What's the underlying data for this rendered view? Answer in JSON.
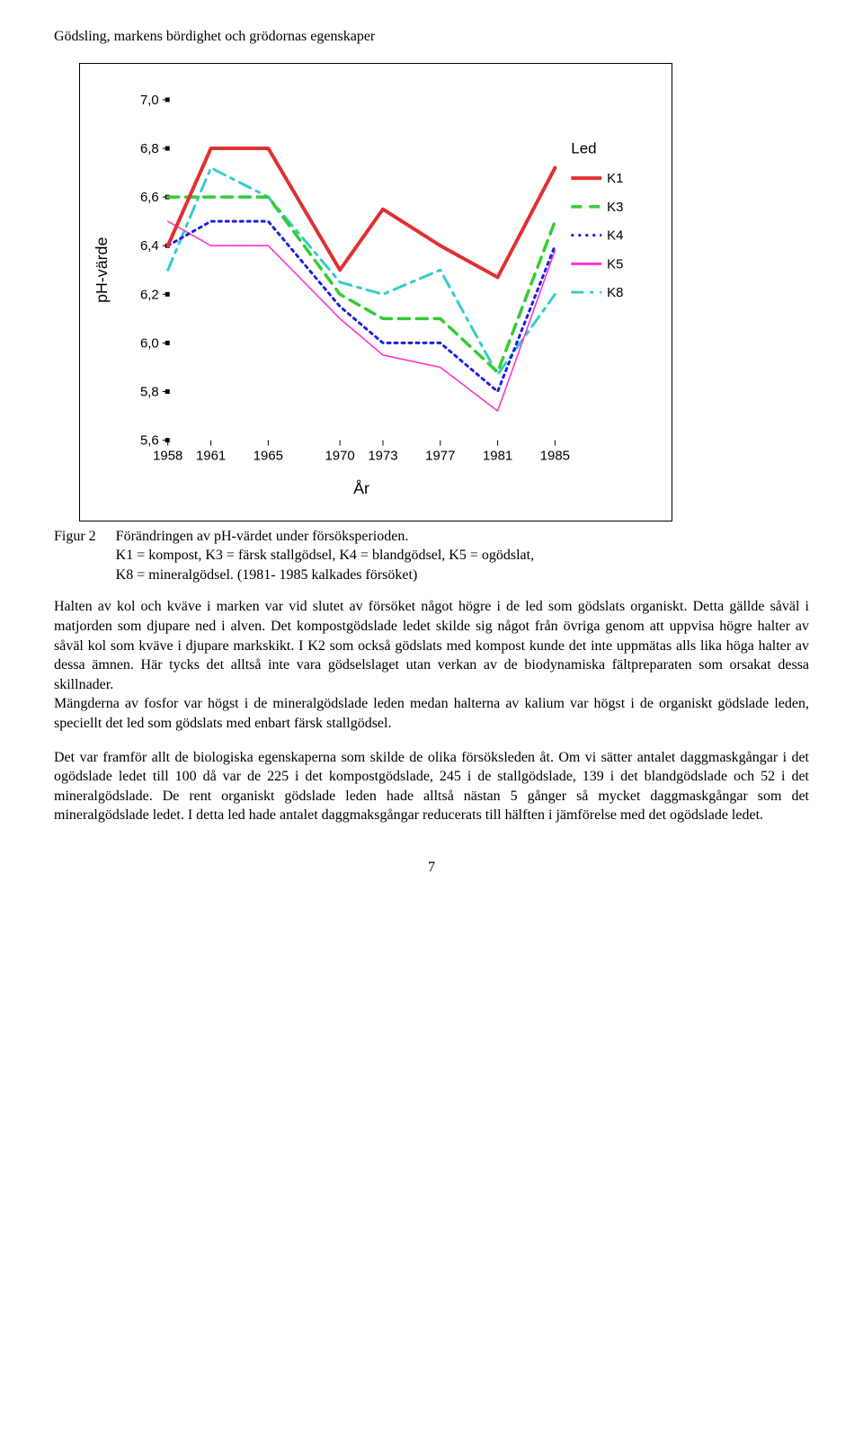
{
  "header": "Gödsling, markens bördighet och grödornas egenskaper",
  "chart": {
    "type": "line",
    "xlabel": "År",
    "ylabel": "pH-värde",
    "legend_title": "Led",
    "x_lim": [
      1958,
      1985
    ],
    "y_lim": [
      5.6,
      7.0
    ],
    "x_ticks": [
      1958,
      1961,
      1965,
      1970,
      1973,
      1977,
      1981,
      1985
    ],
    "y_ticks": [
      5.6,
      5.8,
      6.0,
      6.2,
      6.4,
      6.6,
      6.8,
      7.0
    ],
    "x_tick_labels": [
      "1958",
      "1961",
      "1965",
      "1970",
      "1973",
      "1977",
      "1981",
      "1985"
    ],
    "y_tick_labels": [
      "5,6",
      "5,8",
      "6,0",
      "6,2",
      "6,4",
      "6,6",
      "6,8",
      "7,0"
    ],
    "axis_font_size": 15,
    "label_font_size": 17,
    "background_color": "#ffffff",
    "axis_color": "#000000",
    "tick_length": 6,
    "series": [
      {
        "key": "K8",
        "label": "K8",
        "color": "#33cccc",
        "width": 3.0,
        "style": "dash-dot",
        "values": [
          [
            1958,
            6.3
          ],
          [
            1961,
            6.72
          ],
          [
            1965,
            6.6
          ],
          [
            1970,
            6.25
          ],
          [
            1973,
            6.2
          ],
          [
            1977,
            6.3
          ],
          [
            1981,
            5.87
          ],
          [
            1985,
            6.2
          ]
        ]
      },
      {
        "key": "K5",
        "label": "K5",
        "color": "#ff33cc",
        "width": 1.6,
        "style": "solid",
        "values": [
          [
            1958,
            6.5
          ],
          [
            1961,
            6.4
          ],
          [
            1965,
            6.4
          ],
          [
            1970,
            6.1
          ],
          [
            1973,
            5.95
          ],
          [
            1977,
            5.9
          ],
          [
            1981,
            5.72
          ],
          [
            1985,
            6.38
          ]
        ]
      },
      {
        "key": "K4",
        "label": "K4",
        "color": "#1f1fe0",
        "width": 3.0,
        "style": "dotted",
        "values": [
          [
            1958,
            6.4
          ],
          [
            1961,
            6.5
          ],
          [
            1965,
            6.5
          ],
          [
            1970,
            6.15
          ],
          [
            1973,
            6.0
          ],
          [
            1977,
            6.0
          ],
          [
            1981,
            5.8
          ],
          [
            1985,
            6.4
          ]
        ]
      },
      {
        "key": "K3",
        "label": "K3",
        "color": "#33cc33",
        "width": 3.5,
        "style": "dashed",
        "values": [
          [
            1958,
            6.6
          ],
          [
            1961,
            6.6
          ],
          [
            1965,
            6.6
          ],
          [
            1970,
            6.2
          ],
          [
            1973,
            6.1
          ],
          [
            1977,
            6.1
          ],
          [
            1981,
            5.88
          ],
          [
            1985,
            6.5
          ]
        ]
      },
      {
        "key": "K1",
        "label": "K1",
        "color": "#e03030",
        "width": 4.0,
        "style": "solid",
        "values": [
          [
            1958,
            6.4
          ],
          [
            1961,
            6.8
          ],
          [
            1965,
            6.8
          ],
          [
            1970,
            6.3
          ],
          [
            1973,
            6.55
          ],
          [
            1977,
            6.4
          ],
          [
            1981,
            6.27
          ],
          [
            1985,
            6.72
          ]
        ]
      }
    ],
    "legend_order": [
      "K1",
      "K3",
      "K4",
      "K5",
      "K8"
    ]
  },
  "caption": {
    "label": "Figur 2",
    "text": "Förändringen av pH-värdet under försöksperioden.\nK1 = kompost, K3 = färsk stallgödsel, K4 = blandgödsel, K5 = ogödslat,\nK8 = mineralgödsel. (1981- 1985 kalkades försöket)"
  },
  "paragraphs": [
    "Halten av kol och kväve i marken var vid slutet av försöket något högre i de led som gödslats organiskt. Detta gällde såväl i matjorden som djupare ned i alven. Det kompostgödslade ledet skilde sig något från övriga genom att uppvisa högre halter av såväl kol som kväve i djupare markskikt. I K2 som också gödslats med kompost kunde det inte uppmätas alls lika höga halter av dessa ämnen. Här tycks det alltså inte vara gödselslaget utan verkan av de biodynamiska fältpreparaten som orsakat dessa skillnader.",
    "Mängderna av fosfor var högst i de mineralgödslade leden medan halterna av kalium var högst i de organiskt gödslade leden, speciellt det led som gödslats med enbart färsk stallgödsel.",
    "Det var framför allt de biologiska egenskaperna som skilde de olika försöksleden åt. Om vi sätter antalet daggmaskgångar i det ogödslade ledet till 100 då var de 225 i det kompostgödslade, 245 i de stallgödslade, 139 i det blandgödslade och 52 i det mineralgödslade. De rent organiskt gödslade leden hade alltså nästan 5 gånger så mycket daggmaskgångar som det mineralgödslade ledet. I detta led hade antalet daggmaksgångar reducerats till hälften i jämförelse med det ogödslade ledet."
  ],
  "page_number": "7"
}
